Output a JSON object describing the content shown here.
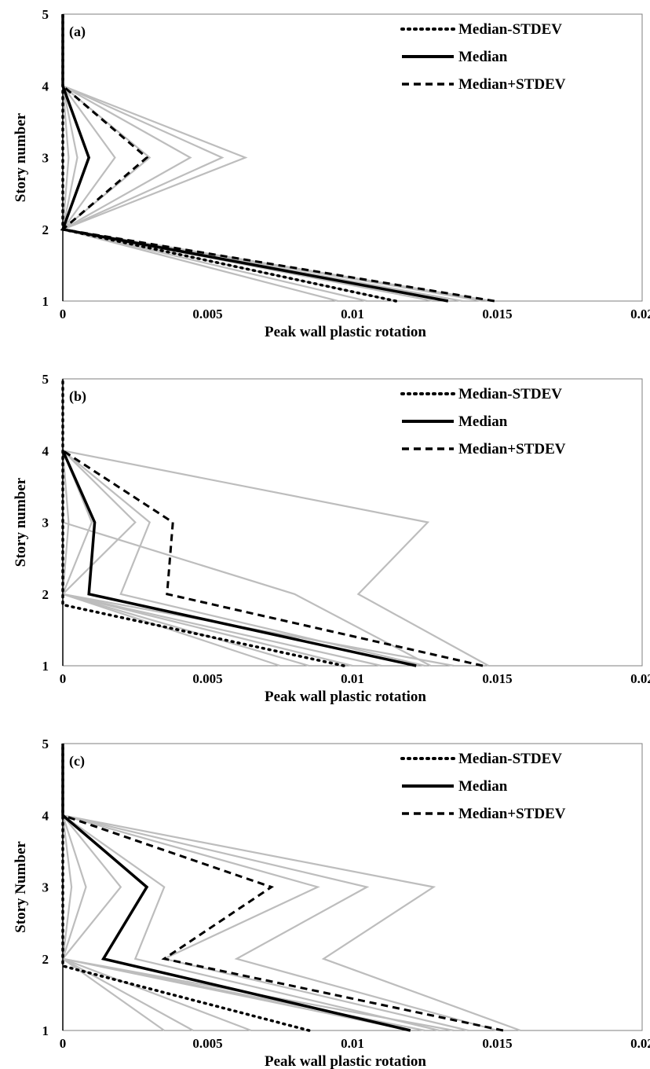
{
  "chart_data": [
    {
      "type": "line",
      "panel_label": "(a)",
      "xlabel": "Peak wall plastic rotation",
      "ylabel": "Story number",
      "xlim": [
        0,
        0.02
      ],
      "ylim": [
        1,
        5
      ],
      "x_ticks": [
        "0",
        "0.005",
        "0.01",
        "0.015",
        "0.02"
      ],
      "y_ticks": [
        "1",
        "2",
        "3",
        "4",
        "5"
      ],
      "legend_position": "top-right",
      "colors": {
        "records": "#bdbdbd",
        "stats": "#000000"
      },
      "records": [
        {
          "x": [
            0.0095,
            0,
            0.0063,
            0,
            0
          ],
          "y": [
            1,
            2,
            3,
            4,
            5
          ]
        },
        {
          "x": [
            0.0105,
            0,
            0.0055,
            0,
            0
          ],
          "y": [
            1,
            2,
            3,
            4,
            5
          ]
        },
        {
          "x": [
            0.0115,
            0,
            0.0044,
            0,
            0
          ],
          "y": [
            1,
            2,
            3,
            4,
            5
          ]
        },
        {
          "x": [
            0.0128,
            0,
            0.003,
            0,
            0
          ],
          "y": [
            1,
            2,
            3,
            4,
            5
          ]
        },
        {
          "x": [
            0.0138,
            0,
            0.0018,
            0,
            0
          ],
          "y": [
            1,
            2,
            3,
            4,
            5
          ]
        },
        {
          "x": [
            0.0145,
            0,
            0.0005,
            0,
            0
          ],
          "y": [
            1,
            2,
            3,
            4,
            5
          ]
        },
        {
          "x": [
            0.0148,
            0,
            0.0002,
            0,
            0
          ],
          "y": [
            1,
            2,
            3,
            4,
            5
          ]
        }
      ],
      "series": [
        {
          "name": "Median-STDEV",
          "style": "dotted",
          "x": [
            0.0115,
            0,
            0,
            0,
            0
          ],
          "y": [
            1,
            2,
            3,
            4,
            5
          ]
        },
        {
          "name": "Median",
          "style": "solid",
          "x": [
            0.0133,
            0,
            0.0009,
            0,
            0
          ],
          "y": [
            1,
            2,
            3,
            4,
            5
          ]
        },
        {
          "name": "Median+STDEV",
          "style": "dashed",
          "x": [
            0.0149,
            0,
            0.0029,
            0
          ],
          "y": [
            1,
            2,
            3,
            4
          ]
        }
      ]
    },
    {
      "type": "line",
      "panel_label": "(b)",
      "xlabel": "Peak wall plastic rotation",
      "ylabel": "Story number",
      "xlim": [
        0,
        0.02
      ],
      "ylim": [
        1,
        5
      ],
      "x_ticks": [
        "0",
        "0.005",
        "0.01",
        "0.015",
        "0.02"
      ],
      "y_ticks": [
        "1",
        "2",
        "3",
        "4",
        "5"
      ],
      "legend_position": "top-right",
      "colors": {
        "records": "#bdbdbd",
        "stats": "#000000"
      },
      "records": [
        {
          "x": [
            0.0147,
            0.0102,
            0.0126,
            0,
            0
          ],
          "y": [
            1,
            2,
            3,
            4,
            5
          ]
        },
        {
          "x": [
            0.0127,
            0.008,
            0,
            0,
            0
          ],
          "y": [
            1,
            2,
            3,
            4,
            5
          ]
        },
        {
          "x": [
            0.0125,
            0.002,
            0.003,
            0,
            0
          ],
          "y": [
            1,
            2,
            3,
            4,
            5
          ]
        },
        {
          "x": [
            0.0135,
            0,
            0.0025,
            0,
            0
          ],
          "y": [
            1,
            2,
            3,
            4,
            5
          ]
        },
        {
          "x": [
            0.011,
            0,
            0.001,
            0,
            0
          ],
          "y": [
            1,
            2,
            3,
            4,
            5
          ]
        },
        {
          "x": [
            0.01,
            0,
            0.0002,
            0,
            0
          ],
          "y": [
            1,
            2,
            3,
            4,
            5
          ]
        },
        {
          "x": [
            0.0085,
            0,
            0,
            0,
            0
          ],
          "y": [
            1,
            2,
            3,
            4,
            5
          ]
        },
        {
          "x": [
            0.0075,
            0,
            0,
            0,
            0
          ],
          "y": [
            1,
            2,
            3,
            4,
            5
          ]
        }
      ],
      "series": [
        {
          "name": "Median-STDEV",
          "style": "dotted",
          "x": [
            0.0097,
            0,
            0,
            0,
            0
          ],
          "y": [
            1,
            1.85,
            3,
            4,
            5
          ]
        },
        {
          "name": "Median",
          "style": "solid",
          "x": [
            0.0122,
            0.0009,
            0.0011,
            0
          ],
          "y": [
            1,
            2,
            3,
            4
          ]
        },
        {
          "name": "Median+STDEV",
          "style": "dashed",
          "x": [
            0.0145,
            0.0036,
            0.0038,
            0
          ],
          "y": [
            1,
            2,
            3,
            4
          ]
        }
      ]
    },
    {
      "type": "line",
      "panel_label": "(c)",
      "xlabel": "Peak wall plastic rotation",
      "ylabel": "Story Number",
      "xlim": [
        0,
        0.02
      ],
      "ylim": [
        1,
        5
      ],
      "x_ticks": [
        "0",
        "0.005",
        "0.01",
        "0.015",
        "0.02"
      ],
      "y_ticks": [
        "1",
        "2",
        "3",
        "4",
        "5"
      ],
      "legend_position": "top-right",
      "colors": {
        "records": "#bdbdbd",
        "stats": "#000000"
      },
      "records": [
        {
          "x": [
            0.0158,
            0.009,
            0.0128,
            0,
            0
          ],
          "y": [
            1,
            2,
            3,
            4,
            5
          ]
        },
        {
          "x": [
            0.015,
            0.006,
            0.0105,
            0,
            0
          ],
          "y": [
            1,
            2,
            3,
            4,
            5
          ]
        },
        {
          "x": [
            0.014,
            0.0035,
            0.0088,
            0,
            0
          ],
          "y": [
            1,
            2,
            3,
            4,
            5
          ]
        },
        {
          "x": [
            0.013,
            0.0025,
            0.0035,
            0,
            0
          ],
          "y": [
            1,
            2,
            3,
            4,
            5
          ]
        },
        {
          "x": [
            0.0125,
            0,
            0.002,
            0,
            0
          ],
          "y": [
            1,
            2,
            3,
            4,
            5
          ]
        },
        {
          "x": [
            0.012,
            0,
            0.0008,
            0,
            0
          ],
          "y": [
            1,
            2,
            3,
            4,
            5
          ]
        },
        {
          "x": [
            0.0135,
            0,
            0.0003,
            0,
            0
          ],
          "y": [
            1,
            2,
            3,
            4,
            5
          ]
        },
        {
          "x": [
            0.0065,
            0,
            0,
            0,
            0
          ],
          "y": [
            1,
            2,
            3,
            4,
            5
          ]
        },
        {
          "x": [
            0.0045,
            0,
            0,
            0,
            0
          ],
          "y": [
            1,
            2,
            3,
            4,
            5
          ]
        },
        {
          "x": [
            0.0035,
            0,
            0,
            0,
            0
          ],
          "y": [
            1,
            2,
            3,
            4,
            5
          ]
        }
      ],
      "series": [
        {
          "name": "Median-STDEV",
          "style": "dotted",
          "x": [
            0.0085,
            0,
            0,
            0,
            0
          ],
          "y": [
            1,
            1.9,
            3,
            4,
            5
          ]
        },
        {
          "name": "Median",
          "style": "solid",
          "x": [
            0.012,
            0.0014,
            0.0029,
            0,
            0
          ],
          "y": [
            1,
            2,
            3,
            4,
            5
          ]
        },
        {
          "name": "Median+STDEV",
          "style": "dashed",
          "x": [
            0.0152,
            0.0035,
            0.0072,
            0
          ],
          "y": [
            1,
            2,
            3,
            4
          ]
        }
      ]
    }
  ]
}
